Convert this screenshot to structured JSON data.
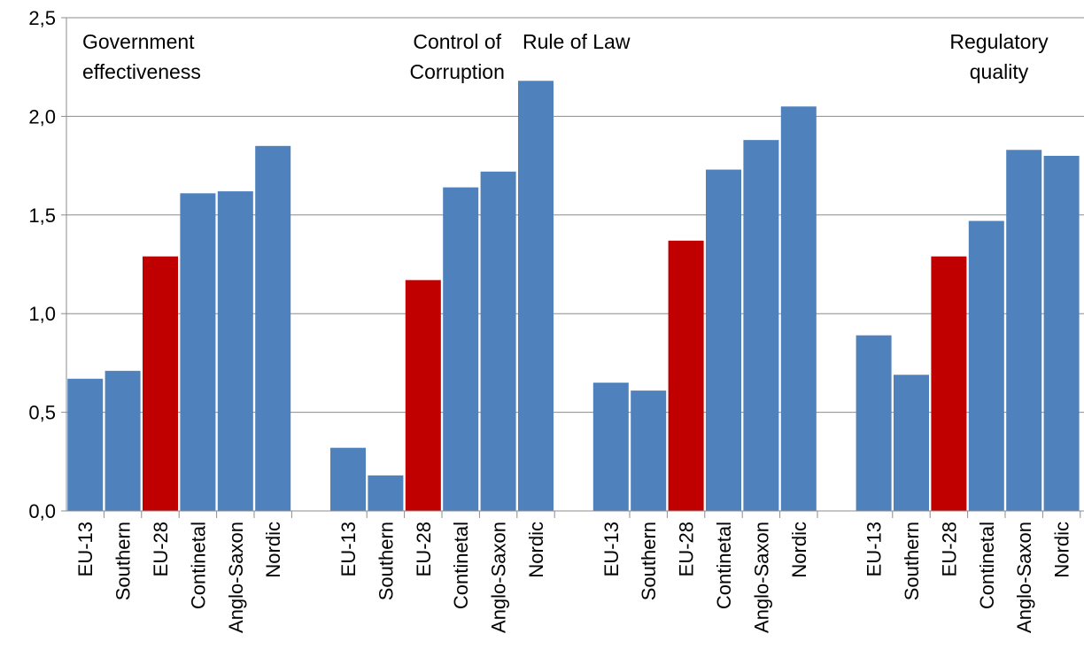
{
  "chart_data": {
    "type": "bar",
    "ylim": [
      0,
      2.5
    ],
    "yticks": [
      "0,0",
      "0,5",
      "1,0",
      "1,5",
      "2,0",
      "2,5"
    ],
    "grid": true,
    "legend": "none",
    "colors": {
      "default": "#4f81bd",
      "highlight": "#c00000",
      "highlight_category": "EU-28"
    },
    "groups": [
      {
        "label": [
          "Government",
          "effectiveness"
        ],
        "categories": [
          "EU-13",
          "Southern",
          "EU-28",
          "Continetal",
          "Anglo-Saxon",
          "Nordic"
        ],
        "values": [
          0.67,
          0.71,
          1.29,
          1.61,
          1.62,
          1.85
        ]
      },
      {
        "label": [
          "Control of",
          "Corruption"
        ],
        "categories": [
          "EU-13",
          "Southern",
          "EU-28",
          "Continetal",
          "Anglo-Saxon",
          "Nordic"
        ],
        "values": [
          0.32,
          0.18,
          1.17,
          1.64,
          1.72,
          2.18
        ]
      },
      {
        "label": [
          "Rule of Law"
        ],
        "categories": [
          "EU-13",
          "Southern",
          "EU-28",
          "Continetal",
          "Anglo-Saxon",
          "Nordic"
        ],
        "values": [
          0.65,
          0.61,
          1.37,
          1.73,
          1.88,
          2.05
        ]
      },
      {
        "label": [
          "Regulatory",
          "quality"
        ],
        "categories": [
          "EU-13",
          "Southern",
          "EU-28",
          "Continetal",
          "Anglo-Saxon",
          "Nordic"
        ],
        "values": [
          0.89,
          0.69,
          1.29,
          1.47,
          1.83,
          1.8
        ]
      }
    ]
  }
}
